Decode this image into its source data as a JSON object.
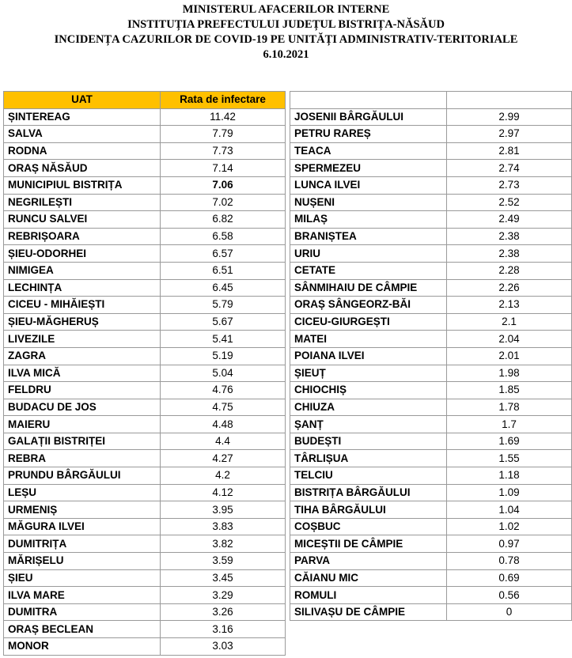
{
  "header": {
    "line1": "MINISTERUL AFACERILOR INTERNE",
    "line2": "INSTITUȚIA PREFECTULUI JUDEȚUL BISTRIȚA-NĂSĂUD",
    "line3": "INCIDENȚA CAZURILOR DE COVID-19 PE UNITĂȚI ADMINISTRATIV-TERITORIALE",
    "line4": "6.10.2021"
  },
  "table": {
    "col_uat": "UAT",
    "col_rate": "Rata de infectare",
    "left_rows": [
      {
        "uat": "ȘINTEREAG",
        "rate": "11.42"
      },
      {
        "uat": "SALVA",
        "rate": "7.79"
      },
      {
        "uat": "RODNA",
        "rate": "7.73"
      },
      {
        "uat": "ORAȘ NĂSĂUD",
        "rate": "7.14"
      },
      {
        "uat": "MUNICIPIUL BISTRIȚA",
        "rate": "7.06"
      },
      {
        "uat": "NEGRILEȘTI",
        "rate": "7.02"
      },
      {
        "uat": "RUNCU SALVEI",
        "rate": "6.82"
      },
      {
        "uat": "REBRIȘOARA",
        "rate": "6.58"
      },
      {
        "uat": "ȘIEU-ODORHEI",
        "rate": "6.57"
      },
      {
        "uat": "NIMIGEA",
        "rate": "6.51"
      },
      {
        "uat": "LECHINȚA",
        "rate": "6.45"
      },
      {
        "uat": "CICEU - MIHĂIEȘTI",
        "rate": "5.79"
      },
      {
        "uat": "ȘIEU-MĂGHERUȘ",
        "rate": "5.67"
      },
      {
        "uat": "LIVEZILE",
        "rate": "5.41"
      },
      {
        "uat": "ZAGRA",
        "rate": "5.19"
      },
      {
        "uat": "ILVA MICĂ",
        "rate": "5.04"
      },
      {
        "uat": "FELDRU",
        "rate": "4.76"
      },
      {
        "uat": "BUDACU DE JOS",
        "rate": "4.75"
      },
      {
        "uat": "MAIERU",
        "rate": "4.48"
      },
      {
        "uat": "GALAȚII BISTRIȚEI",
        "rate": "4.4"
      },
      {
        "uat": "REBRA",
        "rate": "4.27"
      },
      {
        "uat": "PRUNDU BÂRGĂULUI",
        "rate": "4.2"
      },
      {
        "uat": "LEȘU",
        "rate": "4.12"
      },
      {
        "uat": "URMENIȘ",
        "rate": "3.95"
      },
      {
        "uat": "MĂGURA ILVEI",
        "rate": "3.83"
      },
      {
        "uat": "DUMITRIȚA",
        "rate": "3.82"
      },
      {
        "uat": "MĂRIȘELU",
        "rate": "3.59"
      },
      {
        "uat": "ȘIEU",
        "rate": "3.45"
      },
      {
        "uat": "ILVA MARE",
        "rate": "3.29"
      },
      {
        "uat": "DUMITRA",
        "rate": "3.26"
      },
      {
        "uat": "ORAȘ BECLEAN",
        "rate": "3.16"
      },
      {
        "uat": "MONOR",
        "rate": "3.03"
      }
    ],
    "right_rows": [
      {
        "uat": "JOSENII BÂRGĂULUI",
        "rate": "2.99"
      },
      {
        "uat": "PETRU RAREȘ",
        "rate": "2.97"
      },
      {
        "uat": "TEACA",
        "rate": "2.81"
      },
      {
        "uat": "SPERMEZEU",
        "rate": "2.74"
      },
      {
        "uat": "LUNCA ILVEI",
        "rate": "2.73"
      },
      {
        "uat": "NUȘENI",
        "rate": "2.52"
      },
      {
        "uat": "MILAȘ",
        "rate": "2.49"
      },
      {
        "uat": "BRANIȘTEA",
        "rate": "2.38"
      },
      {
        "uat": "URIU",
        "rate": "2.38"
      },
      {
        "uat": "CETATE",
        "rate": "2.28"
      },
      {
        "uat": "SÂNMIHAIU DE CÂMPIE",
        "rate": "2.26"
      },
      {
        "uat": "ORAȘ SÂNGEORZ-BĂI",
        "rate": "2.13"
      },
      {
        "uat": "CICEU-GIURGEȘTI",
        "rate": "2.1"
      },
      {
        "uat": "MATEI",
        "rate": "2.04"
      },
      {
        "uat": "POIANA ILVEI",
        "rate": "2.01"
      },
      {
        "uat": "ȘIEUȚ",
        "rate": "1.98"
      },
      {
        "uat": "CHIOCHIȘ",
        "rate": "1.85"
      },
      {
        "uat": "CHIUZA",
        "rate": "1.78"
      },
      {
        "uat": "ȘANȚ",
        "rate": "1.7"
      },
      {
        "uat": "BUDEȘTI",
        "rate": "1.69"
      },
      {
        "uat": "TÂRLIȘUA",
        "rate": "1.55"
      },
      {
        "uat": "TELCIU",
        "rate": "1.18"
      },
      {
        "uat": "BISTRIȚA BÂRGĂULUI",
        "rate": "1.09"
      },
      {
        "uat": "TIHA BÂRGĂULUI",
        "rate": "1.04"
      },
      {
        "uat": "COȘBUC",
        "rate": "1.02"
      },
      {
        "uat": "MICEȘTII DE CÂMPIE",
        "rate": "0.97"
      },
      {
        "uat": "PARVA",
        "rate": "0.78"
      },
      {
        "uat": "CĂIANU MIC",
        "rate": "0.69"
      },
      {
        "uat": "ROMULI",
        "rate": "0.56"
      },
      {
        "uat": "SILIVAȘU DE CÂMPIE",
        "rate": "0"
      }
    ]
  },
  "colors": {
    "header_fill": "#ffc000",
    "grid": "#9a9a9a"
  }
}
